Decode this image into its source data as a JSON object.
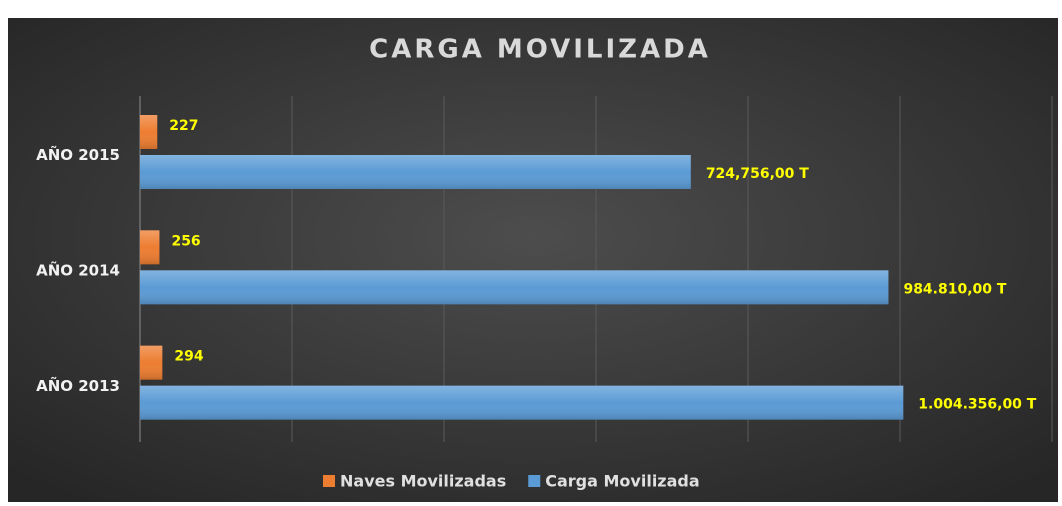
{
  "chart_data": {
    "type": "bar",
    "orientation": "horizontal",
    "title": "CARGA MOVILIZADA",
    "categories": [
      "AÑO 2013",
      "AÑO 2014",
      "AÑO 2015"
    ],
    "series": [
      {
        "name": "Naves Movilizadas",
        "color": "#ed7d31",
        "axis": "x2",
        "values": [
          294,
          256,
          227
        ]
      },
      {
        "name": "Carga Movilizada",
        "color": "#5b9bd5",
        "values": [
          1004356,
          984810,
          724756
        ],
        "value_labels": [
          "1.004.356,00  T",
          "984.810,00  T",
          "724,756,00  T"
        ]
      }
    ],
    "xlim": [
      0,
      1200000
    ],
    "xticks": [
      0,
      200000,
      400000,
      600000,
      800000,
      1000000,
      1200000
    ],
    "x2lim": [
      0,
      12000
    ],
    "grid": true,
    "legend": "bottom"
  }
}
